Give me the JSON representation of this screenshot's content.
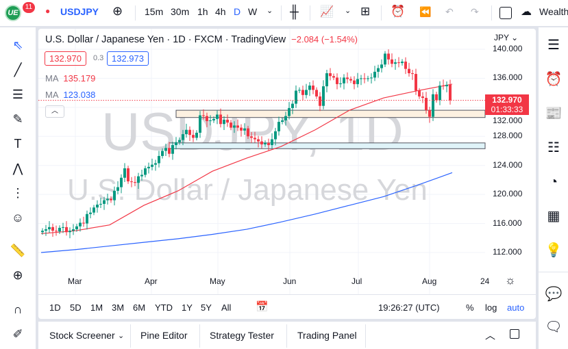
{
  "header": {
    "notifications": "11",
    "logo_text": "UE",
    "symbol": "USDJPY",
    "intervals": [
      "15m",
      "30m",
      "1h",
      "4h",
      "D",
      "W"
    ],
    "active_interval": "D",
    "wealth_label": "Wealth"
  },
  "legend": {
    "title": "U.S. Dollar / Japanese Yen · 1D · FXCM · TradingView",
    "change": "−2.084 (−1.54%)",
    "bid": "132.970",
    "spread": "0.3",
    "ask": "132.973",
    "ma1_label": "MA",
    "ma1_value": "135.179",
    "ma2_label": "MA",
    "ma2_value": "123.038"
  },
  "watermark": {
    "line1": "USDJPY, 1D",
    "line2": "U.S. Dollar / Japanese Yen"
  },
  "price_axis": {
    "currency": "JPY",
    "ticks": [
      "140.000",
      "136.000",
      "132.000",
      "128.000",
      "124.000",
      "120.000",
      "116.000",
      "112.000"
    ],
    "last_price": "132.970",
    "countdown": "01:33:33"
  },
  "time_axis": {
    "labels": [
      "Mar",
      "Apr",
      "May",
      "Jun",
      "Jul",
      "Aug",
      "24"
    ]
  },
  "range_bar": {
    "ranges": [
      "1D",
      "5D",
      "1M",
      "3M",
      "6M",
      "YTD",
      "1Y",
      "5Y",
      "All"
    ],
    "clock": "19:26:27 (UTC)",
    "percent": "%",
    "log": "log",
    "auto": "auto"
  },
  "bottom_tabs": [
    "Stock Screener",
    "Pine Editor",
    "Strategy Tester",
    "Trading Panel"
  ],
  "colors": {
    "up": "#089981",
    "down": "#f23645",
    "ma1": "#f23645",
    "ma2": "#2962ff",
    "accent": "#2962ff"
  },
  "chart_data": {
    "type": "candlestick",
    "ylim": [
      110,
      141
    ],
    "closes": [
      115.0,
      115.2,
      115.5,
      115.0,
      114.9,
      115.4,
      115.5,
      114.8,
      115.0,
      115.2,
      115.6,
      116.1,
      116.0,
      117.3,
      117.5,
      118.2,
      118.6,
      118.7,
      119.2,
      119.4,
      119.2,
      120.5,
      121.0,
      122.3,
      123.6,
      121.8,
      121.7,
      121.6,
      122.5,
      122.7,
      123.6,
      123.8,
      124.1,
      124.3,
      125.3,
      126.0,
      126.4,
      125.6,
      126.8,
      127.2,
      127.5,
      128.3,
      128.9,
      128.2,
      127.8,
      128.5,
      130.9,
      130.8,
      130.1,
      130.2,
      130.4,
      131.0,
      129.7,
      130.3,
      129.9,
      129.2,
      129.5,
      129.2,
      128.8,
      129.1,
      128.0,
      127.8,
      127.6,
      127.3,
      126.9,
      127.1,
      126.8,
      127.6,
      128.7,
      130.0,
      130.2,
      130.8,
      131.9,
      132.5,
      134.3,
      134.4,
      133.7,
      134.4,
      135.0,
      134.4,
      133.5,
      132.2,
      134.9,
      136.7,
      136.3,
      136.1,
      135.2,
      135.3,
      136.1,
      135.9,
      135.7,
      135.2,
      135.9,
      136.0,
      135.9,
      136.0,
      136.1,
      136.9,
      137.4,
      137.9,
      139.4,
      138.6,
      138.0,
      138.2,
      138.1,
      138.3,
      137.3,
      136.7,
      136.6,
      134.3,
      133.5,
      133.3,
      131.6,
      130.7,
      133.8,
      133.0,
      135.0,
      134.9,
      135.1,
      132.97
    ],
    "ma1_samples": [
      114.6,
      115.0,
      115.8,
      118.5,
      120.5,
      123.2,
      125.0,
      126.6,
      128.9,
      131.6,
      133.3,
      134.3,
      135.2
    ],
    "ma2_samples": [
      112.0,
      112.4,
      112.9,
      113.4,
      113.9,
      114.5,
      115.2,
      116.2,
      117.3,
      118.5,
      119.7,
      121.3,
      123.0
    ],
    "zones": [
      [
        130.6,
        131.6
      ],
      [
        126.3,
        127.1
      ]
    ]
  }
}
